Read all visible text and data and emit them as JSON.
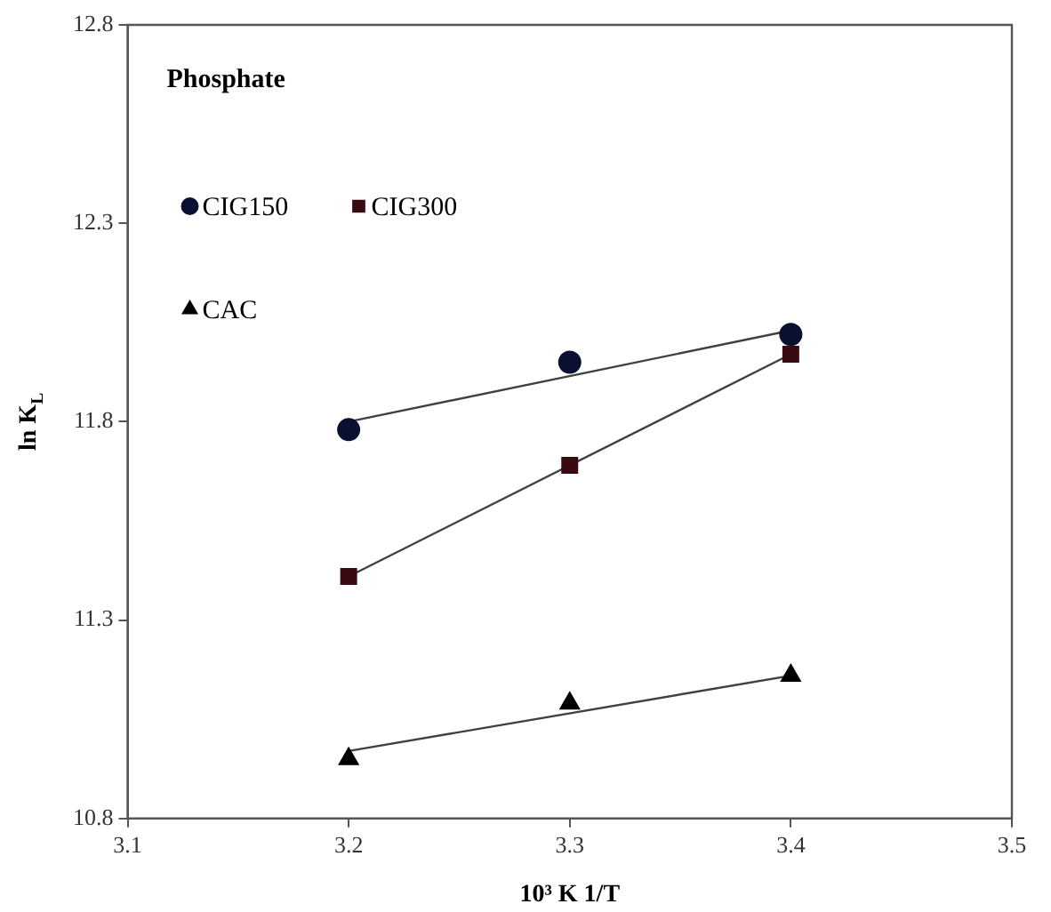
{
  "chart_data": {
    "type": "scatter",
    "title": "Phosphate",
    "xlabel": "10³ K 1/T",
    "ylabel": "ln K$_{L}$",
    "xlim": [
      3.1,
      3.5
    ],
    "xticks": [
      3.1,
      3.2,
      3.3,
      3.4,
      3.5
    ],
    "ylim": [
      10.8,
      12.8
    ],
    "yticks": [
      10.8,
      11.3,
      11.8,
      12.3,
      12.8
    ],
    "grid": false,
    "legend": "top left",
    "series": [
      {
        "name": "CIG150",
        "color": "#0a1030",
        "marker": "circle",
        "x": [
          3.2,
          3.3,
          3.4
        ],
        "values": [
          11.78,
          11.95,
          12.02
        ]
      },
      {
        "name": "CIG300",
        "color": "#3a0a12",
        "marker": "square",
        "x": [
          3.2,
          3.3,
          3.4
        ],
        "values": [
          11.41,
          11.69,
          11.97
        ]
      },
      {
        "name": "CAC",
        "color": "#000000",
        "marker": "triangle",
        "x": [
          3.2,
          3.3,
          3.4
        ],
        "values": [
          10.95,
          11.09,
          11.16
        ]
      },
      {
        "type": "line",
        "color": "#404040",
        "marker": "none",
        "x": [
          3.2,
          3.4
        ],
        "values": [
          11.8,
          12.03
        ]
      },
      {
        "type": "line",
        "color": "#404040",
        "marker": "none",
        "x": [
          3.2,
          3.4
        ],
        "values": [
          11.41,
          11.97
        ]
      },
      {
        "type": "line",
        "color": "#404040",
        "marker": "none",
        "x": [
          3.2,
          3.4
        ],
        "values": [
          10.97,
          11.16
        ]
      }
    ]
  }
}
